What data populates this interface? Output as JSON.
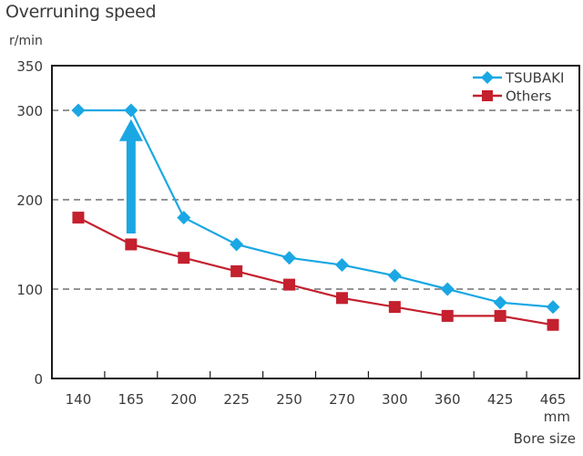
{
  "chart_data": {
    "type": "line",
    "title": "Overruning speed",
    "ylabel": "r/min",
    "xlabel": "Bore size",
    "xunit": "mm",
    "categories": [
      "140",
      "165",
      "200",
      "225",
      "250",
      "270",
      "300",
      "360",
      "425",
      "465"
    ],
    "ylim": [
      0,
      350
    ],
    "yticks": [
      0,
      100,
      200,
      300,
      350
    ],
    "gridlines": [
      100,
      200,
      300
    ],
    "grid": "dashed horizontal",
    "legend_position": "top-right",
    "series": [
      {
        "name": "TSUBAKI",
        "marker": "diamond",
        "color": "#1aa7e4",
        "values": [
          300,
          300,
          180,
          150,
          135,
          127,
          115,
          100,
          85,
          80
        ]
      },
      {
        "name": "Others",
        "marker": "square",
        "color": "#c4202e",
        "values": [
          180,
          150,
          135,
          120,
          105,
          90,
          80,
          70,
          70,
          60
        ]
      }
    ],
    "annotations": [
      {
        "type": "arrow",
        "direction": "up",
        "at_category": "165",
        "from_value": 150,
        "to_value": 290,
        "color": "#1aa7e4"
      }
    ]
  }
}
